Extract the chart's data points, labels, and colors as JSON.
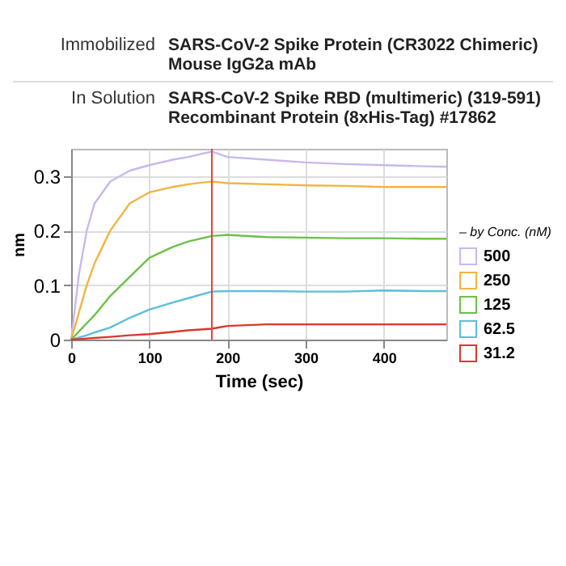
{
  "chart_data": {
    "type": "line",
    "xlabel": "Time (sec)",
    "ylabel": "nm",
    "legend_title": "– by Conc. (nM)",
    "annotations": [
      "Immobilized",
      "SARS-CoV-2 Spike Protein (CR3022 Chimeric) Mouse IgG2a mAb",
      "In Solution",
      "SARS-CoV-2 Spike RBD (multimeric) (319-591) Recombinant Protein (8xHis-Tag) #17862"
    ],
    "x": [
      0,
      10,
      20,
      30,
      50,
      75,
      100,
      130,
      150,
      180,
      200,
      250,
      300,
      350,
      400,
      450,
      480
    ],
    "series": [
      {
        "name": "500",
        "color": "#c9b8ec",
        "values": [
          0,
          0.12,
          0.2,
          0.25,
          0.29,
          0.31,
          0.32,
          0.33,
          0.335,
          0.345,
          0.335,
          0.33,
          0.325,
          0.322,
          0.32,
          0.318,
          0.317
        ]
      },
      {
        "name": "250",
        "color": "#f2b440",
        "values": [
          0,
          0.05,
          0.1,
          0.14,
          0.2,
          0.25,
          0.27,
          0.28,
          0.285,
          0.29,
          0.287,
          0.285,
          0.283,
          0.282,
          0.28,
          0.28,
          0.28
        ]
      },
      {
        "name": "125",
        "color": "#6cc04a",
        "values": [
          0,
          0.015,
          0.03,
          0.045,
          0.08,
          0.115,
          0.15,
          0.17,
          0.18,
          0.19,
          0.192,
          0.188,
          0.187,
          0.186,
          0.186,
          0.185,
          0.185
        ]
      },
      {
        "name": "62.5",
        "color": "#5bc0d8",
        "values": [
          0,
          0.004,
          0.008,
          0.013,
          0.022,
          0.04,
          0.055,
          0.068,
          0.076,
          0.088,
          0.089,
          0.089,
          0.088,
          0.088,
          0.09,
          0.089,
          0.089
        ]
      },
      {
        "name": "31.2",
        "color": "#d63a2a",
        "values": [
          0,
          0.001,
          0.002,
          0.003,
          0.005,
          0.008,
          0.01,
          0.014,
          0.017,
          0.02,
          0.025,
          0.028,
          0.028,
          0.028,
          0.028,
          0.028,
          0.028
        ]
      }
    ],
    "xlim": [
      0,
      480
    ],
    "ylim": [
      0,
      0.35
    ],
    "xticks": [
      0,
      100,
      200,
      300,
      400
    ],
    "yticks": [
      0,
      0.1,
      0.2,
      0.3
    ],
    "ref_lines": [
      {
        "axis": "x",
        "value": 180,
        "color": "#e8413c"
      }
    ],
    "grid": true,
    "legend": "bottom right",
    "marker": "none",
    "line_style": "solid"
  }
}
